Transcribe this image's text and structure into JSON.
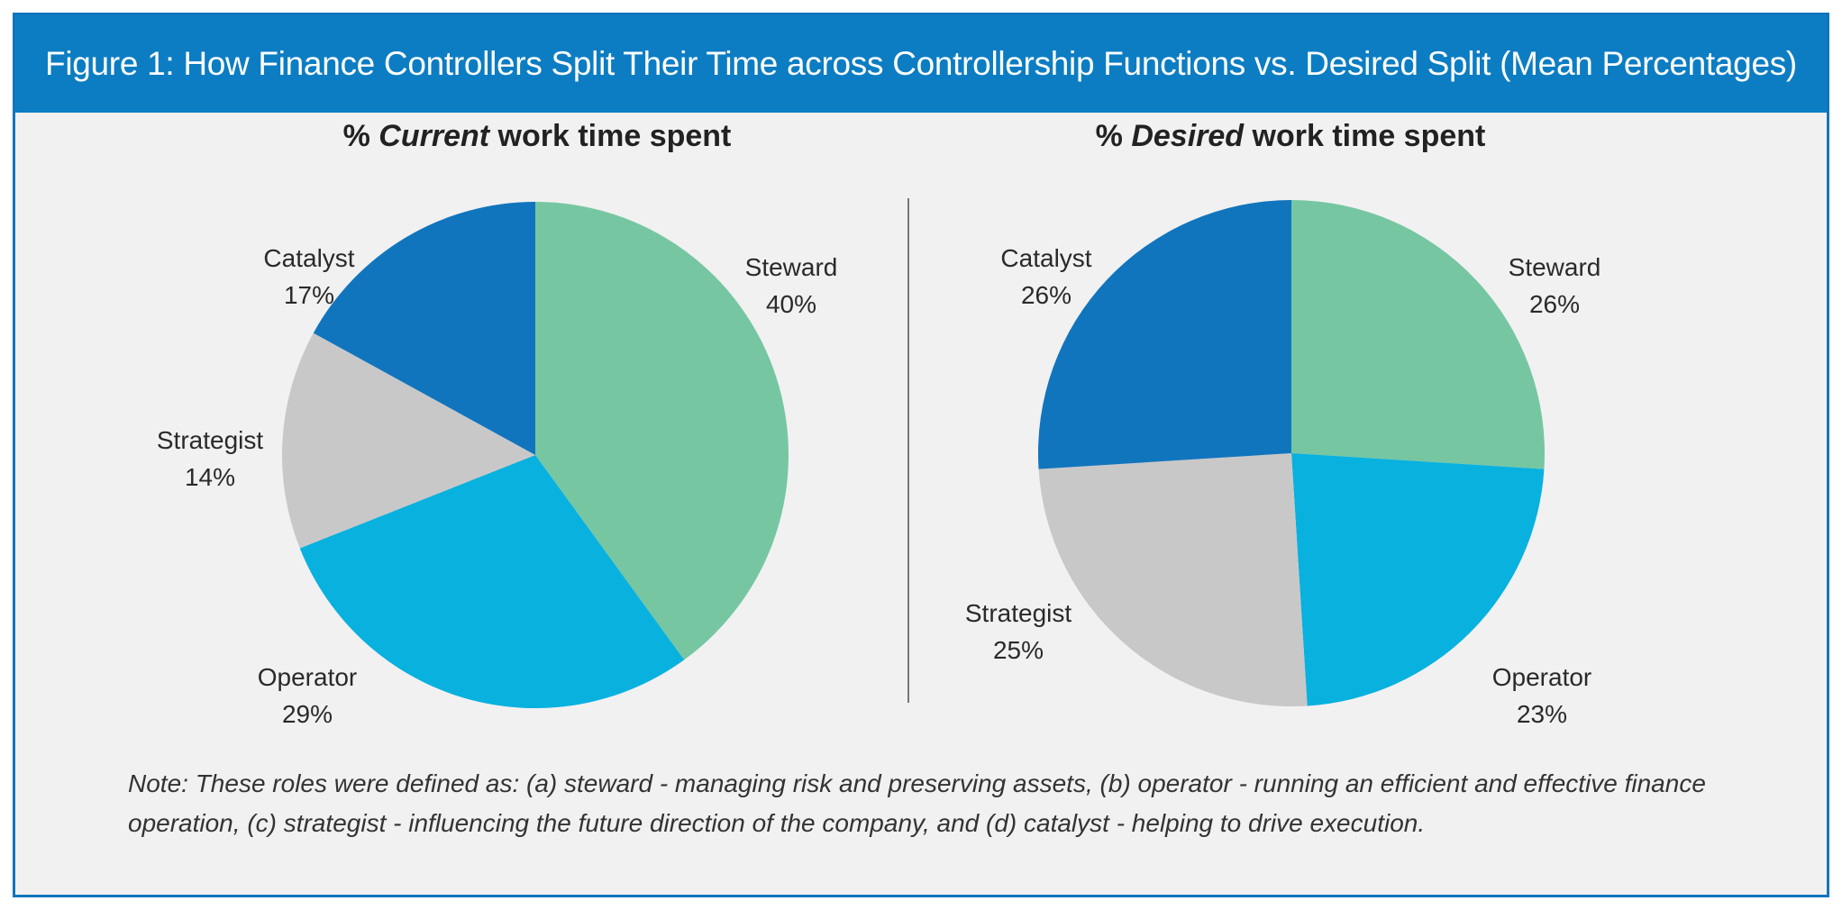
{
  "figure": {
    "title": "Figure 1: How Finance Controllers Split Their Time across Controllership Functions vs. Desired Split (Mean Percentages)",
    "note": "Note: These roles were defined as: (a) steward - managing risk and preserving assets, (b) operator - running an efficient and effective finance operation, (c) strategist - influencing the future direction of the company, and (d) catalyst - helping to drive execution."
  },
  "colors": {
    "Steward": "#76c6a2",
    "Operator": "#09b1df",
    "Strategist": "#c9c8c8",
    "Catalyst": "#1175be"
  },
  "chart_data": [
    {
      "type": "pie",
      "title_prefix": "% ",
      "title_emphasis": "Current",
      "title_suffix": " work time spent",
      "categories": [
        "Steward",
        "Operator",
        "Strategist",
        "Catalyst"
      ],
      "values": [
        40,
        29,
        14,
        17
      ],
      "value_labels": [
        "40%",
        "29%",
        "14%",
        "17%"
      ]
    },
    {
      "type": "pie",
      "title_prefix": "% ",
      "title_emphasis": "Desired",
      "title_suffix": " work time spent",
      "categories": [
        "Steward",
        "Operator",
        "Strategist",
        "Catalyst"
      ],
      "values": [
        26,
        23,
        25,
        26
      ],
      "value_labels": [
        "26%",
        "23%",
        "25%",
        "26%"
      ]
    }
  ]
}
